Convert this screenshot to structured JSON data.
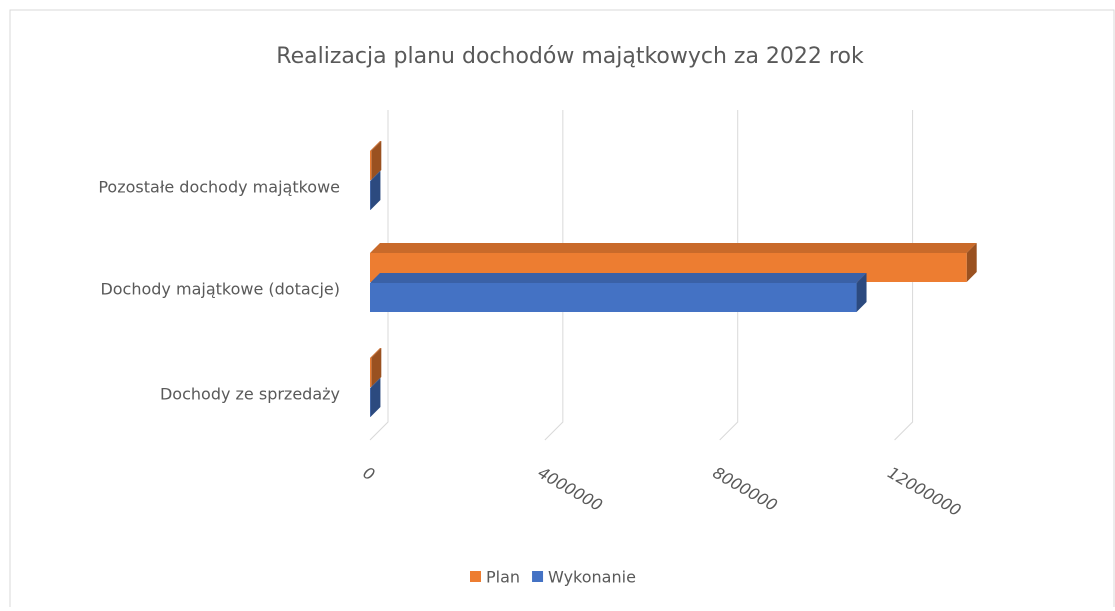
{
  "chart_data": {
    "type": "bar3d_horizontal",
    "title": "Realizacja planu dochodów majątkowych za 2022 rok",
    "categories": [
      "Dochody ze sprzedaży",
      "Dochody majątkowe (dotacje)",
      "Pozostałe dochody majątkowe"
    ],
    "series": [
      {
        "name": "Plan",
        "color": "#ed7d31",
        "values": [
          30000,
          13650000,
          30000
        ]
      },
      {
        "name": "Wykonanie",
        "color": "#4472c4",
        "values": [
          10000,
          11130000,
          10000
        ]
      }
    ],
    "xlim": [
      0,
      14000000
    ],
    "xticks": [
      0,
      4000000,
      8000000,
      12000000
    ],
    "grid": true,
    "legend": "bottom"
  }
}
